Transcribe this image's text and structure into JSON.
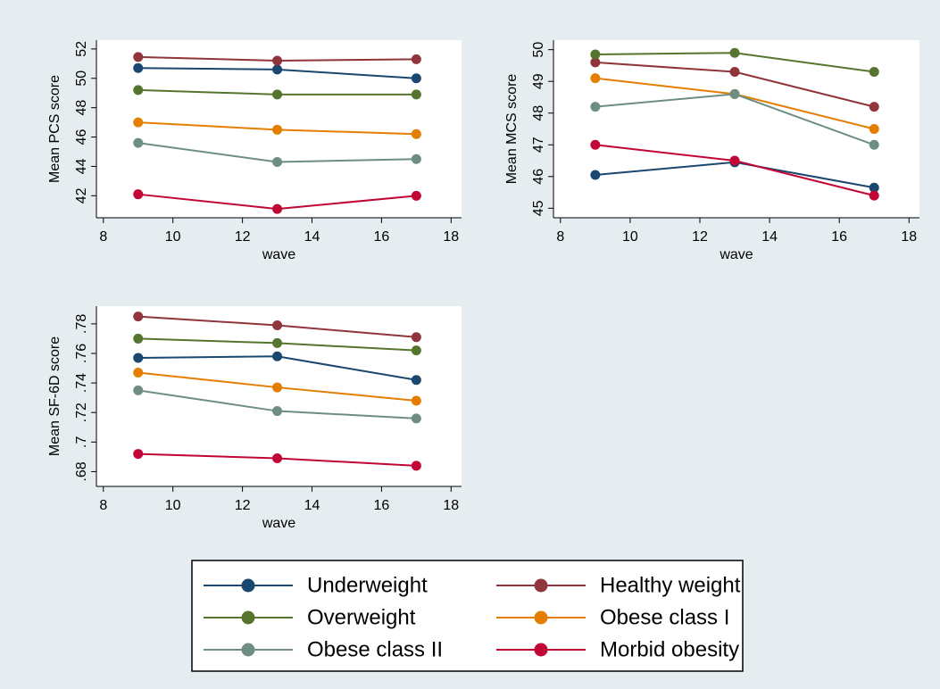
{
  "chart_data": [
    {
      "type": "line",
      "y_label": "Mean PCS score",
      "x_label": "wave",
      "x": [
        9,
        13,
        17
      ],
      "xlim": [
        7.8,
        18.3
      ],
      "xticks": [
        8,
        10,
        12,
        14,
        16,
        18
      ],
      "ylim": [
        40.5,
        52.6
      ],
      "yticks": [
        42,
        44,
        46,
        48,
        50,
        52
      ],
      "series": [
        {
          "name": "Underweight",
          "color": "#1a476f",
          "values": [
            50.7,
            50.6,
            50.0
          ]
        },
        {
          "name": "Healthy weight",
          "color": "#90353b",
          "values": [
            51.45,
            51.2,
            51.3
          ]
        },
        {
          "name": "Overweight",
          "color": "#55752f",
          "values": [
            49.2,
            48.9,
            48.9
          ]
        },
        {
          "name": "Obese class I",
          "color": "#e37e00",
          "values": [
            47.0,
            46.5,
            46.2
          ]
        },
        {
          "name": "Obese class II",
          "color": "#6e8e84",
          "values": [
            45.6,
            44.3,
            44.5
          ]
        },
        {
          "name": "Morbid obesity",
          "color": "#c10534",
          "values": [
            42.1,
            41.1,
            42.0
          ]
        }
      ]
    },
    {
      "type": "line",
      "y_label": "Mean MCS score",
      "x_label": "wave",
      "x": [
        9,
        13,
        17
      ],
      "xlim": [
        7.8,
        18.3
      ],
      "xticks": [
        8,
        10,
        12,
        14,
        16,
        18
      ],
      "ylim": [
        44.7,
        50.3
      ],
      "yticks": [
        45,
        46,
        47,
        48,
        49,
        50
      ],
      "series": [
        {
          "name": "Underweight",
          "color": "#1a476f",
          "values": [
            46.05,
            46.45,
            45.65
          ]
        },
        {
          "name": "Healthy weight",
          "color": "#90353b",
          "values": [
            49.6,
            49.3,
            48.2
          ]
        },
        {
          "name": "Overweight",
          "color": "#55752f",
          "values": [
            49.85,
            49.9,
            49.3
          ]
        },
        {
          "name": "Obese class I",
          "color": "#e37e00",
          "values": [
            49.1,
            48.6,
            47.5
          ]
        },
        {
          "name": "Obese class II",
          "color": "#6e8e84",
          "values": [
            48.2,
            48.6,
            47.0
          ]
        },
        {
          "name": "Morbid obesity",
          "color": "#c10534",
          "values": [
            47.0,
            46.5,
            45.4
          ]
        }
      ]
    },
    {
      "type": "line",
      "y_label": "Mean SF-6D score",
      "x_label": "wave",
      "x": [
        9,
        13,
        17
      ],
      "xlim": [
        7.8,
        18.3
      ],
      "xticks": [
        8,
        10,
        12,
        14,
        16,
        18
      ],
      "ylim": [
        0.67,
        0.792
      ],
      "yticks": [
        {
          "value": 0.68,
          "label": ".68"
        },
        {
          "value": 0.7,
          "label": ".7"
        },
        {
          "value": 0.72,
          "label": ".72"
        },
        {
          "value": 0.74,
          "label": ".74"
        },
        {
          "value": 0.76,
          "label": ".76"
        },
        {
          "value": 0.78,
          "label": ".78"
        }
      ],
      "series": [
        {
          "name": "Underweight",
          "color": "#1a476f",
          "values": [
            0.757,
            0.758,
            0.742
          ]
        },
        {
          "name": "Healthy weight",
          "color": "#90353b",
          "values": [
            0.785,
            0.779,
            0.771
          ]
        },
        {
          "name": "Overweight",
          "color": "#55752f",
          "values": [
            0.77,
            0.767,
            0.762
          ]
        },
        {
          "name": "Obese class I",
          "color": "#e37e00",
          "values": [
            0.747,
            0.737,
            0.728
          ]
        },
        {
          "name": "Obese class II",
          "color": "#6e8e84",
          "values": [
            0.735,
            0.721,
            0.716
          ]
        },
        {
          "name": "Morbid obesity",
          "color": "#c10534",
          "values": [
            0.692,
            0.689,
            0.684
          ]
        }
      ]
    }
  ]
}
